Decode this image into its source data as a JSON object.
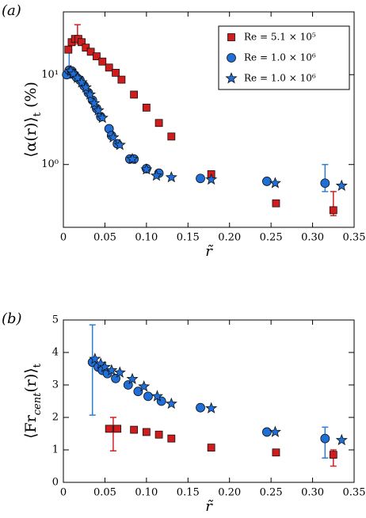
{
  "chart_data": [
    {
      "type": "scatter",
      "panel_label": "(a)",
      "ylabel": [
        {
          "text": "⟨α(r)⟩"
        },
        {
          "text": "t",
          "sub": true
        },
        {
          "text": " (%)"
        }
      ],
      "xlabel": "r̃",
      "yscale": "log",
      "grid": false,
      "legend": "upper right",
      "xlim": [
        0,
        0.35
      ],
      "ylim": [
        0.2,
        50
      ],
      "xticks": [
        0,
        0.05,
        {
          "value": 0.1,
          "label": "0.10"
        },
        0.15,
        {
          "value": 0.2,
          "label": "0.20"
        },
        0.25,
        {
          "value": 0.3,
          "label": "0.30"
        },
        0.35
      ],
      "yticks": [
        {
          "value": 1,
          "label": "10⁰"
        },
        {
          "value": 10,
          "label": "10¹"
        }
      ],
      "series": [
        {
          "name": "Re = 5.1 × 10⁵",
          "marker": "square",
          "color": "#d01c1c",
          "x": [
            0.006,
            0.01,
            0.014,
            0.018,
            0.022,
            0.027,
            0.033,
            0.04,
            0.047,
            0.055,
            0.063,
            0.07,
            0.085,
            0.1,
            0.115,
            0.13,
            0.178,
            0.256,
            0.325
          ],
          "values": [
            19,
            23,
            25,
            25,
            23,
            20,
            18,
            16,
            14,
            12,
            10.5,
            8.8,
            6,
            4.3,
            2.9,
            2.05,
            0.78,
            0.37,
            0.31
          ]
        },
        {
          "name": "Re = 1.0 × 10⁶",
          "marker": "circle",
          "color": "#1f6fd8",
          "x": [
            0.004,
            0.007,
            0.01,
            0.013,
            0.016,
            0.02,
            0.025,
            0.03,
            0.035,
            0.04,
            0.045,
            0.055,
            0.058,
            0.065,
            0.08,
            0.085,
            0.1,
            0.115,
            0.165,
            0.245,
            0.315
          ],
          "values": [
            10,
            11.2,
            11,
            10,
            9.3,
            8.7,
            7.5,
            6.3,
            5.2,
            4.2,
            3.4,
            2.5,
            2.1,
            1.7,
            1.15,
            1.15,
            0.9,
            0.8,
            0.7,
            0.65,
            0.62
          ]
        },
        {
          "name": "Re = 1.0 × 10⁶",
          "marker": "star",
          "color": "#1f6fd8",
          "x": [
            0.009,
            0.012,
            0.017,
            0.022,
            0.027,
            0.032,
            0.037,
            0.042,
            0.047,
            0.06,
            0.068,
            0.083,
            0.1,
            0.112,
            0.13,
            0.178,
            0.255,
            0.335
          ],
          "values": [
            11,
            10.2,
            9.2,
            8.2,
            7.2,
            6,
            4.8,
            4,
            3.3,
            2,
            1.65,
            1.15,
            0.88,
            0.75,
            0.72,
            0.68,
            0.62,
            0.58
          ]
        }
      ],
      "error_bars": [
        {
          "x": 0.007,
          "low": 9.8,
          "high": 19,
          "color": "#2d7fd6"
        },
        {
          "x": 0.017,
          "low": 22,
          "high": 36,
          "color": "#d42020"
        },
        {
          "x": 0.315,
          "low": 0.5,
          "high": 1.0,
          "color": "#2d7fd6"
        },
        {
          "x": 0.325,
          "low": 0.27,
          "high": 0.5,
          "color": "#d42020"
        }
      ]
    },
    {
      "type": "scatter",
      "panel_label": "(b)",
      "ylabel": [
        {
          "text": "⟨Fr"
        },
        {
          "text": "cent",
          "sub": true,
          "italic": true
        },
        {
          "text": "(r)⟩"
        },
        {
          "text": "t",
          "sub": true
        }
      ],
      "xlabel": "r̃",
      "yscale": "linear",
      "grid": false,
      "xlim": [
        0,
        0.35
      ],
      "ylim": [
        0,
        5
      ],
      "xticks": [
        0,
        0.05,
        {
          "value": 0.1,
          "label": "0.10"
        },
        0.15,
        {
          "value": 0.2,
          "label": "0.20"
        },
        0.25,
        {
          "value": 0.3,
          "label": "0.30"
        },
        0.35
      ],
      "yticks": [
        0,
        1,
        2,
        3,
        4,
        5
      ],
      "series": [
        {
          "marker": "square",
          "color": "#d01c1c",
          "x": [
            0.055,
            0.065,
            0.085,
            0.1,
            0.115,
            0.13,
            0.178,
            0.256,
            0.325
          ],
          "values": [
            1.65,
            1.65,
            1.62,
            1.55,
            1.47,
            1.35,
            1.07,
            0.92,
            0.85
          ]
        },
        {
          "marker": "circle",
          "color": "#1f6fd8",
          "x": [
            0.035,
            0.042,
            0.047,
            0.053,
            0.063,
            0.078,
            0.09,
            0.102,
            0.118,
            0.165,
            0.245,
            0.315
          ],
          "values": [
            3.7,
            3.55,
            3.45,
            3.35,
            3.2,
            3.0,
            2.8,
            2.65,
            2.5,
            2.3,
            1.55,
            1.35
          ]
        },
        {
          "marker": "star",
          "color": "#1f6fd8",
          "x": [
            0.038,
            0.045,
            0.05,
            0.058,
            0.068,
            0.083,
            0.097,
            0.113,
            0.13,
            0.178,
            0.255,
            0.335
          ],
          "values": [
            3.8,
            3.65,
            3.55,
            3.45,
            3.38,
            3.18,
            2.95,
            2.65,
            2.42,
            2.28,
            1.55,
            1.3
          ]
        }
      ],
      "error_bars": [
        {
          "x": 0.035,
          "low": 2.07,
          "high": 4.85,
          "color": "#2d7fd6"
        },
        {
          "x": 0.06,
          "low": 0.97,
          "high": 2.0,
          "color": "#d42020"
        },
        {
          "x": 0.315,
          "low": 0.75,
          "high": 1.7,
          "color": "#2d7fd6"
        },
        {
          "x": 0.325,
          "low": 0.5,
          "high": 1.0,
          "color": "#d42020"
        }
      ]
    }
  ]
}
